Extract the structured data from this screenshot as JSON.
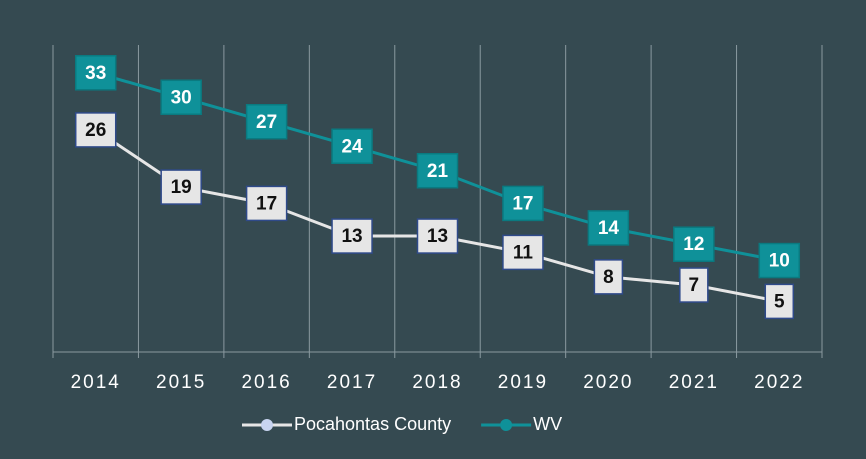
{
  "chart_data": {
    "type": "line",
    "categories": [
      "2014",
      "2015",
      "2016",
      "2017",
      "2018",
      "2019",
      "2020",
      "2021",
      "2022"
    ],
    "series": [
      {
        "name": "Pocahontas County",
        "color": "#e6e6e6",
        "values": [
          26,
          19,
          17,
          13,
          13,
          11,
          8,
          7,
          5
        ]
      },
      {
        "name": "WV",
        "color": "#0f9199",
        "values": [
          33,
          30,
          27,
          24,
          21,
          17,
          14,
          12,
          10
        ]
      }
    ],
    "ylim": [
      -1.2,
      36.4
    ]
  }
}
